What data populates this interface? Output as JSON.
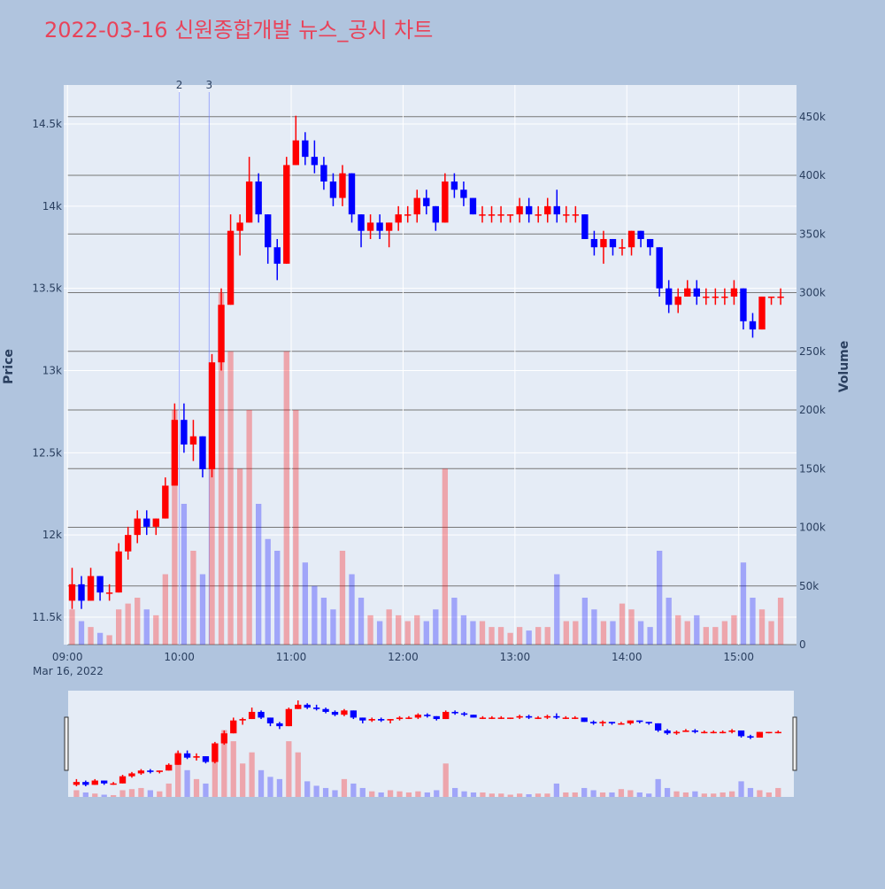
{
  "chart_data": {
    "type": "candlestick",
    "title": "2022-03-16 신원종합개발 뉴스_공시 차트",
    "x": [
      "09:00",
      "09:05",
      "09:10",
      "09:15",
      "09:20",
      "09:25",
      "09:30",
      "09:35",
      "09:40",
      "09:45",
      "09:50",
      "09:55",
      "10:00",
      "10:05",
      "10:10",
      "10:15",
      "10:20",
      "10:25",
      "10:30",
      "10:35",
      "10:40",
      "10:45",
      "10:50",
      "10:55",
      "11:00",
      "11:05",
      "11:10",
      "11:15",
      "11:20",
      "11:25",
      "11:30",
      "11:35",
      "11:40",
      "11:45",
      "11:50",
      "11:55",
      "12:00",
      "12:05",
      "12:10",
      "12:15",
      "12:20",
      "12:25",
      "12:30",
      "12:35",
      "12:40",
      "12:45",
      "12:50",
      "12:55",
      "13:00",
      "13:05",
      "13:10",
      "13:15",
      "13:20",
      "13:25",
      "13:30",
      "13:35",
      "13:40",
      "13:45",
      "13:50",
      "13:55",
      "14:00",
      "14:05",
      "14:10",
      "14:15",
      "14:20",
      "14:25",
      "14:30",
      "14:35",
      "14:40",
      "14:45",
      "14:50",
      "14:55",
      "15:00",
      "15:05",
      "15:10",
      "15:15",
      "15:20"
    ],
    "open": [
      11600,
      11700,
      11600,
      11750,
      11650,
      11650,
      11900,
      12000,
      12100,
      12050,
      12100,
      12300,
      12700,
      12550,
      12600,
      12400,
      13050,
      13400,
      13850,
      13900,
      14150,
      13950,
      13750,
      13650,
      14250,
      14400,
      14300,
      14250,
      14150,
      14050,
      14200,
      13950,
      13850,
      13900,
      13850,
      13900,
      13950,
      13950,
      14050,
      14000,
      13900,
      14150,
      14100,
      14050,
      13950,
      13950,
      13950,
      13950,
      13950,
      14000,
      13950,
      13950,
      14000,
      13950,
      13950,
      13950,
      13800,
      13750,
      13800,
      13750,
      13750,
      13850,
      13800,
      13750,
      13500,
      13400,
      13450,
      13500,
      13450,
      13450,
      13450,
      13450,
      13500,
      13300,
      13250,
      13450,
      13450
    ],
    "high": [
      11800,
      11750,
      11800,
      11750,
      11700,
      11950,
      12050,
      12150,
      12150,
      12100,
      12350,
      12800,
      12800,
      12700,
      12600,
      13100,
      13500,
      13950,
      13950,
      14300,
      14200,
      13950,
      13800,
      14300,
      14550,
      14450,
      14400,
      14300,
      14200,
      14250,
      14200,
      13950,
      13950,
      13950,
      13900,
      14000,
      14000,
      14100,
      14100,
      14000,
      14200,
      14200,
      14150,
      14050,
      14000,
      14000,
      14000,
      13950,
      14050,
      14050,
      14000,
      14050,
      14100,
      14000,
      14000,
      13950,
      13850,
      13850,
      13800,
      13800,
      13850,
      13850,
      13800,
      13750,
      13550,
      13500,
      13550,
      13550,
      13500,
      13500,
      13500,
      13550,
      13500,
      13350,
      13450,
      13450,
      13500
    ],
    "low": [
      11550,
      11550,
      11600,
      11600,
      11600,
      11650,
      11850,
      11950,
      12000,
      12000,
      12100,
      12300,
      12500,
      12450,
      12350,
      12350,
      13000,
      13400,
      13700,
      13900,
      13900,
      13650,
      13550,
      13650,
      14250,
      14250,
      14200,
      14100,
      14000,
      14000,
      13900,
      13750,
      13800,
      13800,
      13750,
      13850,
      13900,
      13900,
      13950,
      13850,
      13900,
      14050,
      14000,
      13950,
      13900,
      13900,
      13900,
      13900,
      13900,
      13900,
      13900,
      13900,
      13900,
      13900,
      13900,
      13800,
      13700,
      13650,
      13700,
      13700,
      13700,
      13750,
      13700,
      13450,
      13350,
      13350,
      13450,
      13400,
      13400,
      13400,
      13400,
      13400,
      13250,
      13200,
      13250,
      13400,
      13400
    ],
    "close": [
      11700,
      11600,
      11750,
      11650,
      11650,
      11900,
      12000,
      12100,
      12050,
      12100,
      12300,
      12700,
      12550,
      12600,
      12400,
      13050,
      13400,
      13850,
      13900,
      14150,
      13950,
      13750,
      13650,
      14250,
      14400,
      14300,
      14250,
      14150,
      14050,
      14200,
      13950,
      13850,
      13900,
      13850,
      13900,
      13950,
      13950,
      14050,
      14000,
      13900,
      14150,
      14100,
      14050,
      13950,
      13950,
      13950,
      13950,
      13950,
      14000,
      13950,
      13950,
      14000,
      13950,
      13950,
      13950,
      13800,
      13750,
      13800,
      13750,
      13750,
      13850,
      13800,
      13750,
      13500,
      13400,
      13450,
      13500,
      13450,
      13450,
      13450,
      13450,
      13500,
      13300,
      13250,
      13450,
      13450,
      13450
    ],
    "volume": [
      30000,
      20000,
      15000,
      10000,
      8000,
      30000,
      35000,
      40000,
      30000,
      25000,
      60000,
      200000,
      120000,
      80000,
      60000,
      180000,
      300000,
      250000,
      150000,
      200000,
      120000,
      90000,
      80000,
      250000,
      200000,
      70000,
      50000,
      40000,
      30000,
      80000,
      60000,
      40000,
      25000,
      20000,
      30000,
      25000,
      20000,
      25000,
      20000,
      30000,
      150000,
      40000,
      25000,
      20000,
      20000,
      15000,
      15000,
      10000,
      15000,
      12000,
      15000,
      15000,
      60000,
      20000,
      20000,
      40000,
      30000,
      20000,
      20000,
      35000,
      30000,
      20000,
      15000,
      80000,
      40000,
      25000,
      20000,
      25000,
      15000,
      15000,
      20000,
      25000,
      70000,
      40000,
      30000,
      20000,
      40000
    ],
    "increasing_color": "#ff0000",
    "decreasing_color": "#0000ff",
    "xlim": [
      "08:58",
      "15:31"
    ],
    "xticks": [
      "09:00",
      "10:00",
      "11:00",
      "12:00",
      "13:00",
      "14:00",
      "15:00"
    ],
    "x_date_label": "Mar 16, 2022",
    "ylim": [
      11333,
      14737
    ],
    "yticks": [
      {
        "value": 11500,
        "label": "11.5k"
      },
      {
        "value": 12000,
        "label": "12k"
      },
      {
        "value": 12500,
        "label": "12.5k"
      },
      {
        "value": 13000,
        "label": "13k"
      },
      {
        "value": 13500,
        "label": "13.5k"
      },
      {
        "value": 14000,
        "label": "14k"
      },
      {
        "value": 14500,
        "label": "14.5k"
      }
    ],
    "y2lim": [
      0,
      477000
    ],
    "y2ticks": [
      0,
      {
        "value": 50000,
        "label": "50k"
      },
      {
        "value": 100000,
        "label": "100k"
      },
      {
        "value": 150000,
        "label": "150k"
      },
      {
        "value": 200000,
        "label": "200k"
      },
      {
        "value": 250000,
        "label": "250k"
      },
      {
        "value": 300000,
        "label": "300k"
      },
      {
        "value": 350000,
        "label": "350k"
      },
      {
        "value": 400000,
        "label": "400k"
      },
      {
        "value": 450000,
        "label": "450k"
      }
    ],
    "ylabel": "Price",
    "y2label": "Volume",
    "annotations": [
      {
        "x": "10:00",
        "text": "2"
      },
      {
        "x": "10:16",
        "text": "3"
      }
    ],
    "rangeslider": true
  }
}
